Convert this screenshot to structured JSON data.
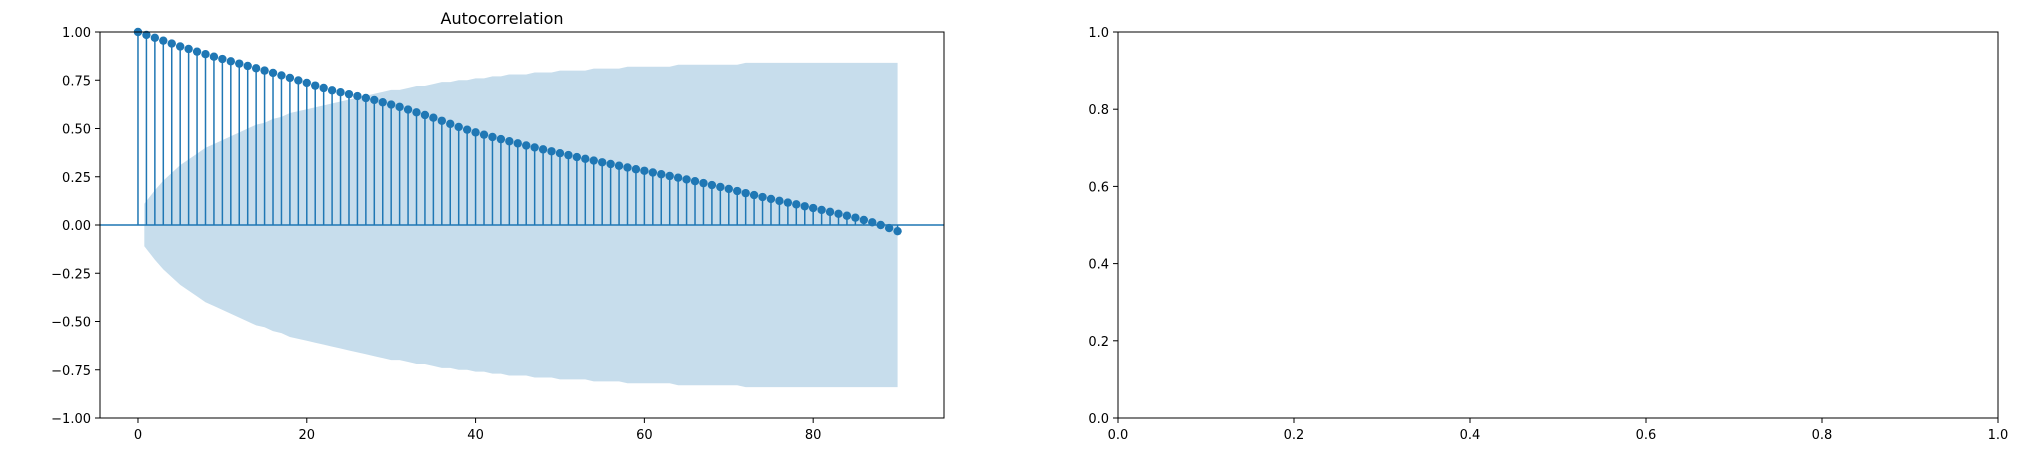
{
  "colors": {
    "series": "#1f77b4",
    "confidence_band": "#1f77b4",
    "axes": "#000000",
    "background": "#ffffff"
  },
  "chart_data": [
    {
      "type": "stem",
      "title": "Autocorrelation",
      "xlabel": "",
      "ylabel": "",
      "xlim": [
        -4.5,
        95.5
      ],
      "ylim": [
        -1.0,
        1.0
      ],
      "xticks": [
        0,
        20,
        40,
        60,
        80
      ],
      "xtick_labels": [
        "0",
        "20",
        "40",
        "60",
        "80"
      ],
      "yticks": [
        -1.0,
        -0.75,
        -0.5,
        -0.25,
        0.0,
        0.25,
        0.5,
        0.75,
        1.0
      ],
      "ytick_labels": [
        "−1.00",
        "−0.75",
        "−0.50",
        "−0.25",
        "0.00",
        "0.25",
        "0.50",
        "0.75",
        "1.00"
      ],
      "grid": false,
      "lags": [
        0,
        1,
        2,
        3,
        4,
        5,
        6,
        7,
        8,
        9,
        10,
        11,
        12,
        13,
        14,
        15,
        16,
        17,
        18,
        19,
        20,
        21,
        22,
        23,
        24,
        25,
        26,
        27,
        28,
        29,
        30,
        31,
        32,
        33,
        34,
        35,
        36,
        37,
        38,
        39,
        40,
        41,
        42,
        43,
        44,
        45,
        46,
        47,
        48,
        49,
        50,
        51,
        52,
        53,
        54,
        55,
        56,
        57,
        58,
        59,
        60,
        61,
        62,
        63,
        64,
        65,
        66,
        67,
        68,
        69,
        70,
        71,
        72,
        73,
        74,
        75,
        76,
        77,
        78,
        79,
        80,
        81,
        82,
        83,
        84,
        85,
        86,
        87,
        88,
        89,
        90
      ],
      "values": [
        1.0,
        0.985,
        0.97,
        0.955,
        0.94,
        0.925,
        0.912,
        0.898,
        0.885,
        0.872,
        0.86,
        0.848,
        0.836,
        0.824,
        0.812,
        0.8,
        0.788,
        0.775,
        0.762,
        0.749,
        0.736,
        0.722,
        0.71,
        0.698,
        0.688,
        0.678,
        0.668,
        0.658,
        0.648,
        0.636,
        0.624,
        0.612,
        0.598,
        0.584,
        0.57,
        0.556,
        0.54,
        0.524,
        0.508,
        0.494,
        0.48,
        0.468,
        0.456,
        0.445,
        0.434,
        0.423,
        0.412,
        0.402,
        0.392,
        0.382,
        0.372,
        0.362,
        0.352,
        0.343,
        0.334,
        0.325,
        0.316,
        0.307,
        0.298,
        0.289,
        0.281,
        0.272,
        0.263,
        0.254,
        0.245,
        0.236,
        0.227,
        0.217,
        0.207,
        0.197,
        0.187,
        0.176,
        0.165,
        0.155,
        0.145,
        0.135,
        0.125,
        0.116,
        0.107,
        0.097,
        0.088,
        0.078,
        0.068,
        0.058,
        0.048,
        0.038,
        0.026,
        0.014,
        0.0,
        -0.016,
        -0.032
      ],
      "confidence_upper": [
        0.0,
        0.11,
        0.18,
        0.23,
        0.27,
        0.31,
        0.34,
        0.37,
        0.4,
        0.42,
        0.44,
        0.46,
        0.48,
        0.5,
        0.52,
        0.53,
        0.55,
        0.56,
        0.58,
        0.59,
        0.6,
        0.61,
        0.62,
        0.63,
        0.64,
        0.65,
        0.66,
        0.67,
        0.68,
        0.69,
        0.7,
        0.7,
        0.71,
        0.72,
        0.72,
        0.73,
        0.74,
        0.74,
        0.75,
        0.75,
        0.76,
        0.76,
        0.77,
        0.77,
        0.78,
        0.78,
        0.78,
        0.79,
        0.79,
        0.79,
        0.8,
        0.8,
        0.8,
        0.8,
        0.81,
        0.81,
        0.81,
        0.81,
        0.82,
        0.82,
        0.82,
        0.82,
        0.82,
        0.82,
        0.83,
        0.83,
        0.83,
        0.83,
        0.83,
        0.83,
        0.83,
        0.83,
        0.84,
        0.84,
        0.84,
        0.84,
        0.84,
        0.84,
        0.84,
        0.84,
        0.84,
        0.84,
        0.84,
        0.84,
        0.84,
        0.84,
        0.84,
        0.84,
        0.84,
        0.84,
        0.84
      ]
    },
    {
      "type": "empty",
      "title": "",
      "xlabel": "",
      "ylabel": "",
      "xlim": [
        0.0,
        1.0
      ],
      "ylim": [
        0.0,
        1.0
      ],
      "xticks": [
        0.0,
        0.2,
        0.4,
        0.6,
        0.8,
        1.0
      ],
      "xtick_labels": [
        "0.0",
        "0.2",
        "0.4",
        "0.6",
        "0.8",
        "1.0"
      ],
      "yticks": [
        0.0,
        0.2,
        0.4,
        0.6,
        0.8,
        1.0
      ],
      "ytick_labels": [
        "0.0",
        "0.2",
        "0.4",
        "0.6",
        "0.8",
        "1.0"
      ],
      "grid": false
    }
  ]
}
